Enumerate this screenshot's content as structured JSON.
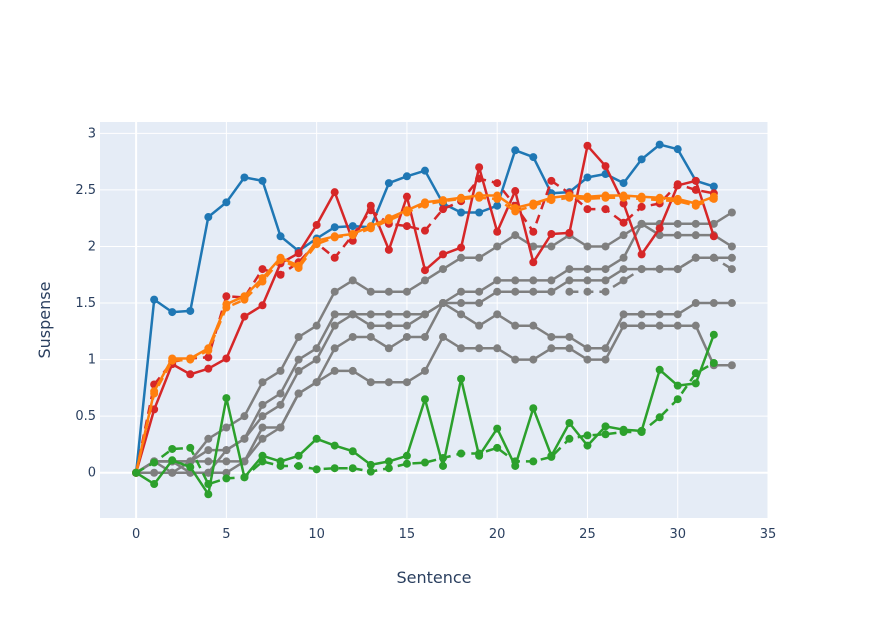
{
  "chart_data": {
    "type": "line",
    "title": "",
    "xlabel": "Sentence",
    "ylabel": "Suspense",
    "xlim": [
      -2,
      35
    ],
    "ylim": [
      -0.4,
      3.1
    ],
    "xticks": [
      0,
      5,
      10,
      15,
      20,
      25,
      30,
      35
    ],
    "yticks": [
      0,
      0.5,
      1,
      1.5,
      2,
      2.5,
      3
    ],
    "xtick_labels": [
      "0",
      "5",
      "10",
      "15",
      "20",
      "25",
      "30",
      "35"
    ],
    "ytick_labels": [
      "0",
      "0.5",
      "1",
      "1.5",
      "2",
      "2.5",
      "3"
    ],
    "grid": true,
    "legend": "none",
    "colors": {
      "plot_bg": "#e5ecf6",
      "grid": "#ffffff",
      "blue": "#1f77b4",
      "red": "#d62728",
      "orange": "#ff7f0e",
      "green": "#2ca02c",
      "gray": "#7f7f7f"
    },
    "series": [
      {
        "color": "gray",
        "dash": "solid",
        "x": [
          0,
          1,
          2,
          3,
          4,
          5,
          6,
          7,
          8,
          9,
          10,
          11,
          12,
          13,
          14,
          15,
          16,
          17,
          18,
          19,
          20,
          21,
          22,
          23,
          24,
          25,
          26,
          27,
          28,
          29,
          30,
          31,
          32,
          33
        ],
        "y": [
          0,
          0.1,
          0,
          0.1,
          0.3,
          0.4,
          0.5,
          0.8,
          0.9,
          1.2,
          1.3,
          1.6,
          1.7,
          1.6,
          1.6,
          1.6,
          1.7,
          1.8,
          1.9,
          1.9,
          2.0,
          2.1,
          2.0,
          2.0,
          2.1,
          2.0,
          2.0,
          2.1,
          2.2,
          2.1,
          2.1,
          2.1,
          2.1,
          2.0
        ]
      },
      {
        "color": "gray",
        "dash": "solid",
        "x": [
          0,
          1,
          2,
          3,
          4,
          5,
          6,
          7,
          8,
          9,
          10,
          11,
          12,
          13,
          14,
          15,
          16,
          17,
          18,
          19,
          20,
          21,
          22,
          23,
          24,
          25,
          26,
          27,
          28,
          29,
          30,
          31,
          32,
          33
        ],
        "y": [
          0,
          0.1,
          0.1,
          0.1,
          0.2,
          0.2,
          0.3,
          0.6,
          0.7,
          1.0,
          1.1,
          1.4,
          1.4,
          1.4,
          1.4,
          1.4,
          1.4,
          1.5,
          1.6,
          1.6,
          1.7,
          1.7,
          1.7,
          1.7,
          1.8,
          1.8,
          1.8,
          1.9,
          2.2,
          2.2,
          2.2,
          2.2,
          2.2,
          2.3
        ]
      },
      {
        "color": "gray",
        "dash": "solid",
        "x": [
          0,
          1,
          2,
          3,
          4,
          5,
          6,
          7,
          8,
          9,
          10,
          11,
          12,
          13,
          14,
          15,
          16,
          17,
          18,
          19,
          20,
          21,
          22,
          23,
          24,
          25,
          26,
          27,
          28,
          29,
          30,
          31,
          32,
          33
        ],
        "y": [
          0,
          0.1,
          0.1,
          0,
          0,
          0.2,
          0.3,
          0.5,
          0.6,
          0.9,
          1.0,
          1.3,
          1.4,
          1.3,
          1.3,
          1.3,
          1.4,
          1.5,
          1.5,
          1.5,
          1.6,
          1.6,
          1.6,
          1.6,
          1.7,
          1.7,
          1.7,
          1.8,
          1.8,
          1.8,
          1.8,
          1.9,
          1.9,
          1.9
        ]
      },
      {
        "color": "gray",
        "dash": "solid",
        "x": [
          0,
          1,
          2,
          3,
          4,
          5,
          6,
          7,
          8,
          9,
          10,
          11,
          12,
          13,
          14,
          15,
          16,
          17,
          18,
          19,
          20,
          21,
          22,
          23,
          24,
          25,
          26,
          27,
          28,
          29,
          30,
          31,
          32,
          33
        ],
        "y": [
          0,
          0.1,
          0.1,
          0.1,
          0.1,
          0.1,
          0.1,
          0.4,
          0.4,
          0.7,
          0.8,
          1.1,
          1.2,
          1.2,
          1.1,
          1.2,
          1.2,
          1.5,
          1.4,
          1.3,
          1.4,
          1.3,
          1.3,
          1.2,
          1.2,
          1.1,
          1.1,
          1.4,
          1.4,
          1.4,
          1.4,
          1.5,
          1.5,
          1.5
        ]
      },
      {
        "color": "gray",
        "dash": "solid",
        "x": [
          0,
          1,
          2,
          3,
          4,
          5,
          6,
          7,
          8,
          9,
          10,
          11,
          12,
          13,
          14,
          15,
          16,
          17,
          18,
          19,
          20,
          21,
          22,
          23,
          24,
          25,
          26,
          27,
          28,
          29,
          30,
          31,
          32,
          33
        ],
        "y": [
          0,
          0,
          0,
          0,
          0,
          0,
          0.1,
          0.3,
          0.4,
          0.7,
          0.8,
          0.9,
          0.9,
          0.8,
          0.8,
          0.8,
          0.9,
          1.2,
          1.1,
          1.1,
          1.1,
          1.0,
          1.0,
          1.1,
          1.1,
          1.0,
          1.0,
          1.3,
          1.3,
          1.3,
          1.3,
          1.3,
          0.95,
          0.95
        ]
      },
      {
        "color": "gray",
        "dash": "dash",
        "x": [
          24,
          25,
          26,
          27,
          28,
          29,
          30,
          31,
          32,
          33
        ],
        "y": [
          1.6,
          1.6,
          1.6,
          1.7,
          1.8,
          1.8,
          1.8,
          1.9,
          1.9,
          1.8
        ]
      },
      {
        "color": "blue",
        "dash": "solid",
        "x": [
          0,
          1,
          2,
          3,
          4,
          5,
          6,
          7,
          8,
          9,
          10,
          11,
          12,
          13,
          14,
          15,
          16,
          17,
          18,
          19,
          20,
          21,
          22,
          23,
          24,
          25,
          26,
          27,
          28,
          29,
          30,
          31,
          32
        ],
        "y": [
          0,
          1.53,
          1.42,
          1.43,
          2.26,
          2.39,
          2.61,
          2.58,
          2.09,
          1.96,
          2.07,
          2.17,
          2.18,
          2.17,
          2.56,
          2.62,
          2.67,
          2.38,
          2.3,
          2.3,
          2.36,
          2.85,
          2.79,
          2.47,
          2.48,
          2.61,
          2.64,
          2.56,
          2.77,
          2.9,
          2.86,
          2.58,
          2.53
        ]
      },
      {
        "color": "red",
        "dash": "solid",
        "x": [
          0,
          1,
          2,
          3,
          4,
          5,
          6,
          7,
          8,
          9,
          10,
          11,
          12,
          13,
          14,
          15,
          16,
          17,
          18,
          19,
          20,
          21,
          22,
          23,
          24,
          25,
          26,
          27,
          28,
          29,
          30,
          31,
          32
        ],
        "y": [
          0,
          0.56,
          0.96,
          0.87,
          0.92,
          1.01,
          1.38,
          1.48,
          1.85,
          1.94,
          2.19,
          2.48,
          2.05,
          2.36,
          1.97,
          2.44,
          1.79,
          1.93,
          1.99,
          2.7,
          2.13,
          2.49,
          1.86,
          2.11,
          2.12,
          2.89,
          2.71,
          2.38,
          1.93,
          2.16,
          2.54,
          2.58,
          2.09
        ]
      },
      {
        "color": "red",
        "dash": "dash",
        "x": [
          0,
          1,
          2,
          3,
          4,
          5,
          6,
          7,
          8,
          9,
          10,
          11,
          12,
          13,
          14,
          15,
          16,
          17,
          18,
          19,
          20,
          21,
          22,
          23,
          24,
          25,
          26,
          27,
          28,
          29,
          30,
          31,
          32
        ],
        "y": [
          0,
          0.78,
          0.98,
          1.01,
          1.02,
          1.56,
          1.55,
          1.8,
          1.75,
          1.86,
          2.03,
          1.9,
          2.1,
          2.32,
          2.2,
          2.18,
          2.14,
          2.33,
          2.4,
          2.6,
          2.56,
          2.36,
          2.13,
          2.58,
          2.47,
          2.33,
          2.33,
          2.21,
          2.35,
          2.38,
          2.55,
          2.5,
          2.47
        ]
      },
      {
        "color": "orange",
        "dash": "solid",
        "x": [
          0,
          1,
          2,
          3,
          4,
          5,
          6,
          7,
          8,
          9,
          10,
          11,
          12,
          13,
          14,
          15,
          16,
          17,
          18,
          19,
          20,
          21,
          22,
          23,
          24,
          25,
          26,
          27,
          28,
          29,
          30,
          31,
          32
        ],
        "y": [
          0,
          0.72,
          1.01,
          1.01,
          1.1,
          1.49,
          1.56,
          1.72,
          1.9,
          1.83,
          2.05,
          2.09,
          2.11,
          2.18,
          2.25,
          2.32,
          2.39,
          2.41,
          2.43,
          2.45,
          2.45,
          2.34,
          2.38,
          2.43,
          2.45,
          2.44,
          2.45,
          2.45,
          2.44,
          2.43,
          2.42,
          2.38,
          2.44
        ]
      },
      {
        "color": "orange",
        "dash": "dash",
        "x": [
          0,
          1,
          2,
          3,
          4,
          5,
          6,
          7,
          8,
          9,
          10,
          11,
          12,
          13,
          14,
          15,
          16,
          17,
          18,
          19,
          20,
          21,
          22,
          23,
          24,
          25,
          26,
          27,
          28,
          29,
          30,
          31,
          32
        ],
        "y": [
          0,
          0.7,
          0.99,
          1.0,
          1.08,
          1.46,
          1.53,
          1.69,
          1.88,
          1.81,
          2.02,
          2.08,
          2.1,
          2.16,
          2.23,
          2.3,
          2.37,
          2.4,
          2.42,
          2.43,
          2.42,
          2.31,
          2.36,
          2.41,
          2.43,
          2.42,
          2.43,
          2.43,
          2.42,
          2.41,
          2.4,
          2.36,
          2.42
        ]
      },
      {
        "color": "green",
        "dash": "solid",
        "x": [
          0,
          1,
          2,
          3,
          4,
          5,
          6,
          7,
          8,
          9,
          10,
          11,
          12,
          13,
          14,
          15,
          16,
          17,
          18,
          19,
          20,
          21,
          22,
          23,
          24,
          25,
          26,
          27,
          28,
          29,
          30,
          31,
          32
        ],
        "y": [
          0,
          -0.1,
          0.11,
          0.05,
          -0.19,
          0.66,
          -0.04,
          0.15,
          0.1,
          0.15,
          0.3,
          0.24,
          0.19,
          0.07,
          0.1,
          0.15,
          0.65,
          0.06,
          0.83,
          0.15,
          0.39,
          0.06,
          0.57,
          0.15,
          0.44,
          0.24,
          0.41,
          0.38,
          0.37,
          0.91,
          0.77,
          0.79,
          1.22
        ]
      },
      {
        "color": "green",
        "dash": "dash",
        "x": [
          0,
          1,
          2,
          3,
          4,
          5,
          6,
          7,
          8,
          9,
          10,
          11,
          12,
          13,
          14,
          15,
          16,
          17,
          18,
          19,
          20,
          21,
          22,
          23,
          24,
          25,
          26,
          27,
          28,
          29,
          30,
          31,
          32
        ],
        "y": [
          0,
          0.09,
          0.21,
          0.22,
          -0.1,
          -0.05,
          -0.04,
          0.1,
          0.06,
          0.06,
          0.03,
          0.04,
          0.04,
          0.01,
          0.04,
          0.08,
          0.09,
          0.13,
          0.17,
          0.17,
          0.22,
          0.1,
          0.1,
          0.14,
          0.3,
          0.33,
          0.34,
          0.36,
          0.36,
          0.49,
          0.65,
          0.88,
          0.97
        ]
      }
    ]
  }
}
